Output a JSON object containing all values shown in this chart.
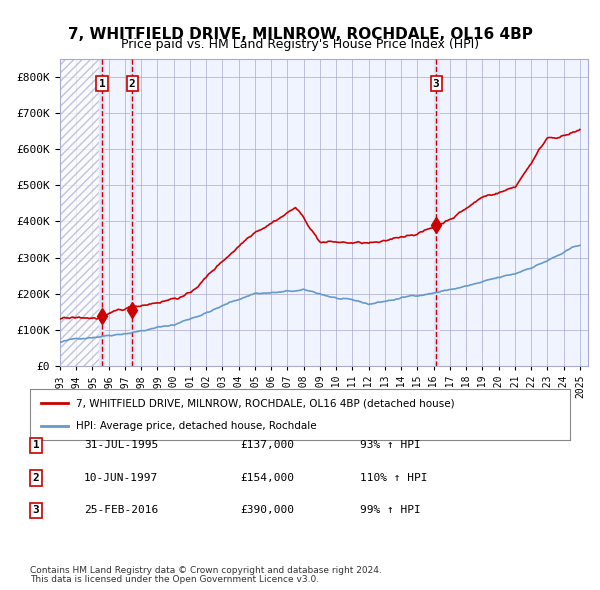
{
  "title": "7, WHITFIELD DRIVE, MILNROW, ROCHDALE, OL16 4BP",
  "subtitle": "Price paid vs. HM Land Registry's House Price Index (HPI)",
  "legend_line1": "7, WHITFIELD DRIVE, MILNROW, ROCHDALE, OL16 4BP (detached house)",
  "legend_line2": "HPI: Average price, detached house, Rochdale",
  "footnote1": "Contains HM Land Registry data © Crown copyright and database right 2024.",
  "footnote2": "This data is licensed under the Open Government Licence v3.0.",
  "transactions": [
    {
      "num": 1,
      "date": "31-JUL-1995",
      "date_float": 1995.58,
      "price": 137000,
      "pct": "93%",
      "dir": "↑"
    },
    {
      "num": 2,
      "date": "10-JUN-1997",
      "date_float": 1997.44,
      "price": 154000,
      "pct": "110%",
      "dir": "↑"
    },
    {
      "num": 3,
      "date": "25-FEB-2016",
      "date_float": 2016.15,
      "price": 390000,
      "pct": "99%",
      "dir": "↑"
    }
  ],
  "hpi_color": "#6699cc",
  "price_color": "#cc0000",
  "bg_color": "#f0f4ff",
  "grid_color": "#aaaacc",
  "vline_color": "#cc0000",
  "vband_color": "#dde8ff",
  "ylim": [
    0,
    850000
  ],
  "yticks": [
    0,
    100000,
    200000,
    300000,
    400000,
    500000,
    600000,
    700000,
    800000
  ],
  "xlim_start": 1993.0,
  "xlim_end": 2025.5
}
